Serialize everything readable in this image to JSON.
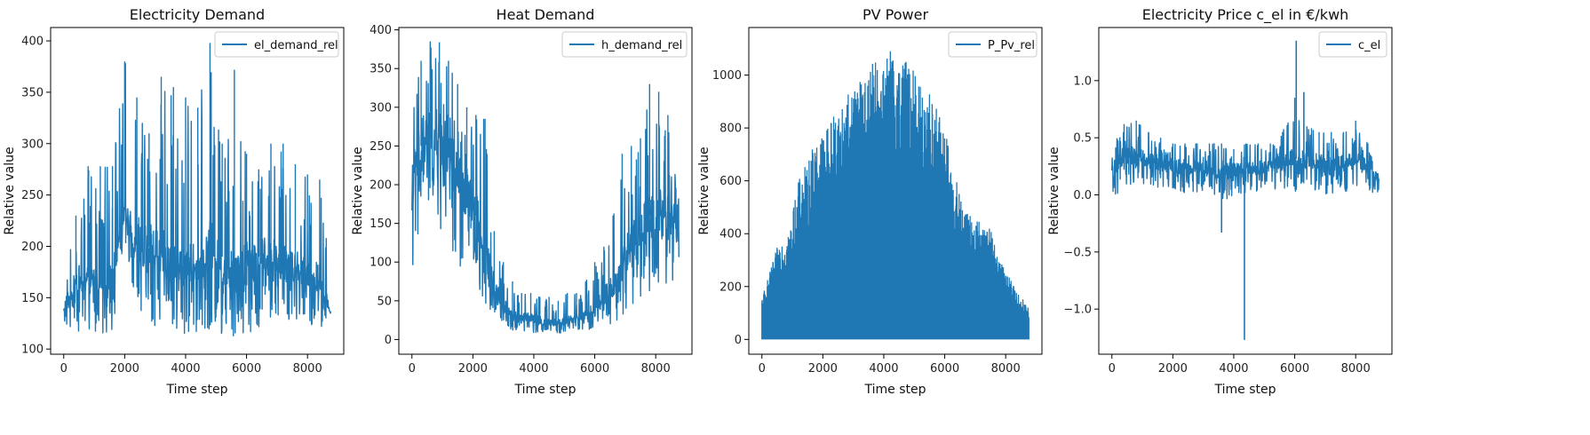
{
  "colors": {
    "series": "#1f77b4",
    "frame": "#000000",
    "legend_border": "#cccccc"
  },
  "chart_data": [
    {
      "type": "line",
      "title": "Electricity Demand",
      "xlabel": "Time step",
      "ylabel": "Relative value",
      "xlim": [
        -430,
        9190
      ],
      "ylim": [
        95,
        413
      ],
      "xticks": [
        0,
        2000,
        4000,
        6000,
        8000
      ],
      "yticks": [
        100,
        150,
        200,
        250,
        300,
        350,
        400
      ],
      "ytick_labels": [
        "100",
        "150",
        "200",
        "250",
        "300",
        "350",
        "400"
      ],
      "legend": "top-right",
      "grid": false,
      "series": [
        {
          "name": "el_demand_rel",
          "x": [
            0,
            400,
            800,
            1200,
            1600,
            2000,
            2400,
            2800,
            3200,
            3600,
            4000,
            4400,
            4800,
            5200,
            5600,
            6000,
            6400,
            6800,
            7200,
            7600,
            8000,
            8400,
            8760
          ],
          "y_low": [
            125,
            115,
            113,
            115,
            118,
            205,
            125,
            122,
            120,
            115,
            108,
            118,
            118,
            112,
            110,
            115,
            120,
            130,
            125,
            130,
            120,
            118,
            128
          ],
          "y_mid": [
            140,
            165,
            170,
            165,
            175,
            235,
            205,
            200,
            195,
            185,
            180,
            185,
            200,
            190,
            180,
            185,
            190,
            190,
            185,
            180,
            175,
            170,
            135
          ],
          "y_high": [
            155,
            230,
            278,
            278,
            278,
            380,
            345,
            310,
            365,
            355,
            345,
            335,
            398,
            300,
            372,
            290,
            275,
            300,
            300,
            280,
            270,
            265,
            183
          ]
        }
      ]
    },
    {
      "type": "line",
      "title": "Heat Demand",
      "xlabel": "Time step",
      "ylabel": "Relative value",
      "xlim": [
        -430,
        9190
      ],
      "ylim": [
        -19,
        403
      ],
      "xticks": [
        0,
        2000,
        4000,
        6000,
        8000
      ],
      "yticks": [
        0,
        50,
        100,
        150,
        200,
        250,
        300,
        350,
        400
      ],
      "ytick_labels": [
        "0",
        "50",
        "100",
        "150",
        "200",
        "250",
        "300",
        "350",
        "400"
      ],
      "legend": "top-right",
      "grid": false,
      "series": [
        {
          "name": "h_demand_rel",
          "x": [
            0,
            300,
            600,
            900,
            1200,
            1500,
            1800,
            2100,
            2400,
            2700,
            3000,
            3300,
            3600,
            3900,
            4200,
            4500,
            4800,
            5100,
            5400,
            5700,
            6000,
            6300,
            6600,
            6900,
            7200,
            7500,
            7800,
            8100,
            8400,
            8760
          ],
          "y_low": [
            88,
            130,
            150,
            140,
            120,
            100,
            80,
            55,
            40,
            25,
            15,
            12,
            10,
            8,
            8,
            7,
            8,
            10,
            10,
            12,
            12,
            15,
            20,
            30,
            40,
            50,
            60,
            70,
            70,
            80
          ],
          "y_mid": [
            200,
            250,
            270,
            260,
            240,
            215,
            190,
            160,
            120,
            70,
            45,
            35,
            30,
            28,
            25,
            22,
            22,
            25,
            28,
            32,
            40,
            55,
            70,
            100,
            130,
            140,
            160,
            175,
            170,
            140
          ],
          "y_high": [
            290,
            360,
            385,
            384,
            360,
            330,
            300,
            290,
            285,
            140,
            100,
            75,
            60,
            60,
            55,
            55,
            50,
            60,
            60,
            75,
            100,
            120,
            160,
            240,
            250,
            260,
            330,
            320,
            290,
            190
          ]
        }
      ]
    },
    {
      "type": "area",
      "title": "PV Power",
      "xlabel": "Time step",
      "ylabel": "Relative value",
      "xlim": [
        -430,
        9190
      ],
      "ylim": [
        -56,
        1180
      ],
      "xticks": [
        0,
        2000,
        4000,
        6000,
        8000
      ],
      "yticks": [
        0,
        200,
        400,
        600,
        800,
        1000
      ],
      "ytick_labels": [
        "0",
        "200",
        "400",
        "600",
        "800",
        "1000"
      ],
      "legend": "top-right",
      "grid": false,
      "series": [
        {
          "name": "P_Pv_rel",
          "x": [
            0,
            300,
            600,
            900,
            1200,
            1500,
            1800,
            2100,
            2400,
            2700,
            3000,
            3300,
            3600,
            3900,
            4200,
            4500,
            4800,
            5100,
            5400,
            5700,
            6000,
            6300,
            6600,
            6900,
            7200,
            7500,
            7800,
            8100,
            8400,
            8760
          ],
          "y_min": [
            0,
            0,
            0,
            0,
            0,
            0,
            0,
            0,
            0,
            0,
            0,
            0,
            0,
            0,
            0,
            0,
            0,
            0,
            0,
            0,
            0,
            0,
            0,
            0,
            0,
            0,
            0,
            0,
            0,
            0
          ],
          "y_max": [
            160,
            270,
            390,
            420,
            600,
            680,
            770,
            800,
            880,
            900,
            960,
            1000,
            1040,
            1070,
            1100,
            1080,
            1050,
            1000,
            960,
            900,
            800,
            640,
            500,
            470,
            440,
            420,
            300,
            240,
            180,
            120
          ]
        }
      ]
    },
    {
      "type": "line",
      "title": "Electricity Price c_el in €/kwh",
      "xlabel": "Time step",
      "ylabel": "Relative value",
      "xlim": [
        -430,
        9190
      ],
      "ylim": [
        -1.395,
        1.465
      ],
      "xticks": [
        0,
        2000,
        4000,
        6000,
        8000
      ],
      "yticks": [
        -1.0,
        -0.5,
        0.0,
        0.5,
        1.0
      ],
      "ytick_labels": [
        "−1.0",
        "−0.5",
        "0.0",
        "0.5",
        "1.0"
      ],
      "legend": "top-right",
      "grid": false,
      "series": [
        {
          "name": "c_el",
          "x": [
            0,
            400,
            800,
            1200,
            1600,
            2000,
            2400,
            2800,
            3200,
            3600,
            4000,
            4400,
            4800,
            5200,
            5600,
            6000,
            6400,
            6800,
            7200,
            7600,
            8000,
            8400,
            8760
          ],
          "y_low": [
            -0.02,
            0.05,
            0.1,
            0.08,
            0.05,
            0.02,
            0.02,
            0.02,
            -0.03,
            -0.1,
            0.0,
            0.02,
            0.0,
            0.05,
            0.05,
            0.02,
            0.05,
            0.02,
            0.0,
            0.02,
            0.03,
            0.0,
            -0.02
          ],
          "y_mid": [
            0.2,
            0.35,
            0.35,
            0.3,
            0.28,
            0.25,
            0.25,
            0.25,
            0.22,
            0.22,
            0.22,
            0.22,
            0.25,
            0.28,
            0.3,
            0.32,
            0.3,
            0.28,
            0.26,
            0.28,
            0.3,
            0.28,
            0.15
          ],
          "y_high": [
            0.45,
            0.62,
            0.65,
            0.55,
            0.5,
            0.45,
            0.45,
            0.45,
            0.45,
            0.45,
            0.4,
            0.45,
            0.45,
            0.45,
            0.55,
            0.85,
            0.6,
            0.55,
            0.55,
            0.55,
            0.65,
            0.45,
            0.35
          ]
        }
      ],
      "annotations_in_data": [
        {
          "x": 3600,
          "y": -0.33
        },
        {
          "x": 4350,
          "y": -1.27
        },
        {
          "x": 6050,
          "y": 1.35
        },
        {
          "x": 6300,
          "y": 0.9
        }
      ]
    }
  ]
}
